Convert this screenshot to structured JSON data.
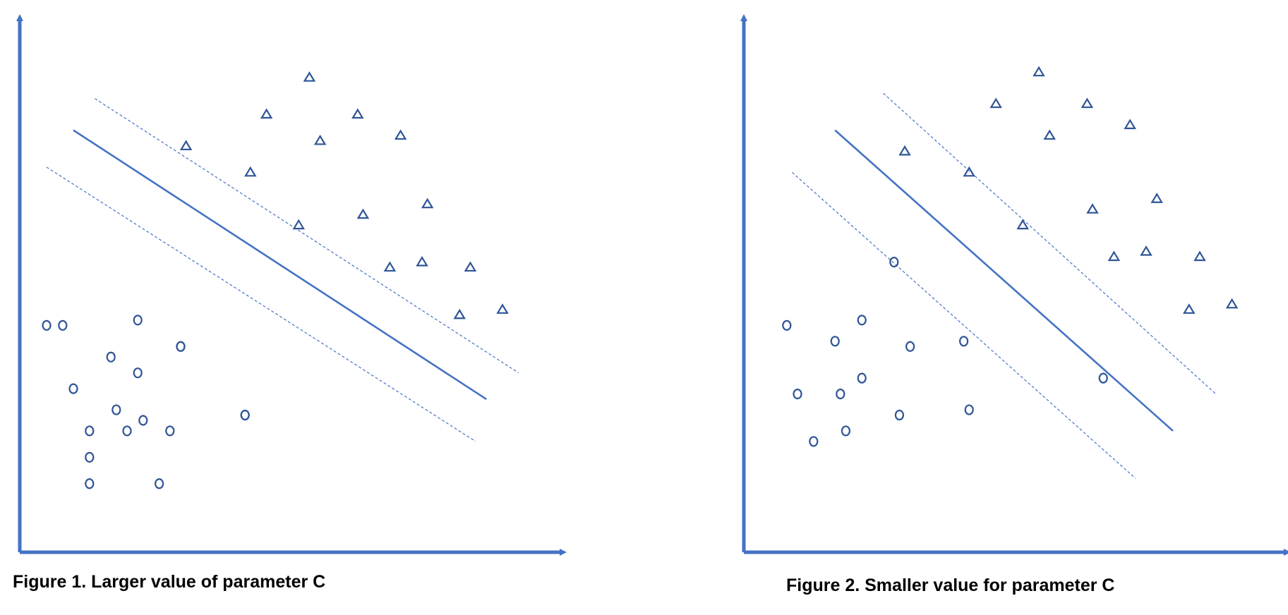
{
  "colors": {
    "axis": "#4472C4",
    "line": "#4472C4",
    "marker": "#2F5597",
    "caption": "#000000"
  },
  "figures": [
    {
      "caption": "Figure 1. Larger value of parameter C",
      "axes": {
        "xlim": [
          0,
          100
        ],
        "ylim": [
          0,
          100
        ]
      },
      "classes": [
        {
          "marker": "circle-icon",
          "points": [
            [
              8,
              43
            ],
            [
              17,
              37
            ],
            [
              10,
              31
            ],
            [
              5,
              43
            ],
            [
              22,
              44
            ],
            [
              30,
              39
            ],
            [
              22,
              34
            ],
            [
              23,
              25
            ],
            [
              18,
              27
            ],
            [
              13,
              23
            ],
            [
              28,
              23
            ],
            [
              20,
              23
            ],
            [
              42,
              26
            ],
            [
              13,
              13
            ],
            [
              13,
              18
            ],
            [
              26,
              13
            ],
            [
              30,
              39
            ],
            [
              42,
              26
            ]
          ]
        },
        {
          "marker": "triangle-icon",
          "points": [
            [
              54,
              90
            ],
            [
              46,
              83
            ],
            [
              63,
              83
            ],
            [
              71,
              79
            ],
            [
              56,
              78
            ],
            [
              31,
              77
            ],
            [
              43,
              72
            ],
            [
              64,
              64
            ],
            [
              76,
              66
            ],
            [
              52,
              62
            ],
            [
              69,
              54
            ],
            [
              75,
              55
            ],
            [
              84,
              54
            ],
            [
              82,
              45
            ],
            [
              90,
              46
            ]
          ]
        }
      ],
      "boundary": {
        "x1": 10,
        "y1": 80,
        "x2": 87,
        "y2": 29
      },
      "margins": [
        {
          "x1": 14,
          "y1": 86,
          "x2": 93,
          "y2": 34
        },
        {
          "x1": 5,
          "y1": 73,
          "x2": 85,
          "y2": 21
        }
      ]
    },
    {
      "caption": "Figure 2. Smaller value for parameter C",
      "axes": {
        "xlim": [
          0,
          100
        ],
        "ylim": [
          0,
          100
        ]
      },
      "classes": [
        {
          "marker": "circle-icon",
          "points": [
            [
              28,
              55
            ],
            [
              8,
              43
            ],
            [
              22,
              44
            ],
            [
              17,
              40
            ],
            [
              31,
              39
            ],
            [
              41,
              40
            ],
            [
              22,
              33
            ],
            [
              10,
              30
            ],
            [
              18,
              30
            ],
            [
              29,
              26
            ],
            [
              42,
              27
            ],
            [
              13,
              21
            ],
            [
              19,
              23
            ],
            [
              67,
              33
            ]
          ]
        },
        {
          "marker": "triangle-icon",
          "points": [
            [
              55,
              91
            ],
            [
              47,
              85
            ],
            [
              64,
              85
            ],
            [
              72,
              81
            ],
            [
              57,
              79
            ],
            [
              30,
              76
            ],
            [
              42,
              72
            ],
            [
              65,
              65
            ],
            [
              77,
              67
            ],
            [
              52,
              62
            ],
            [
              69,
              56
            ],
            [
              75,
              57
            ],
            [
              85,
              56
            ],
            [
              83,
              46
            ],
            [
              91,
              47
            ]
          ]
        }
      ],
      "boundary": {
        "x1": 17,
        "y1": 80,
        "x2": 80,
        "y2": 23
      },
      "margins": [
        {
          "x1": 26,
          "y1": 87,
          "x2": 88,
          "y2": 30
        },
        {
          "x1": 9,
          "y1": 72,
          "x2": 73,
          "y2": 14
        }
      ]
    }
  ]
}
